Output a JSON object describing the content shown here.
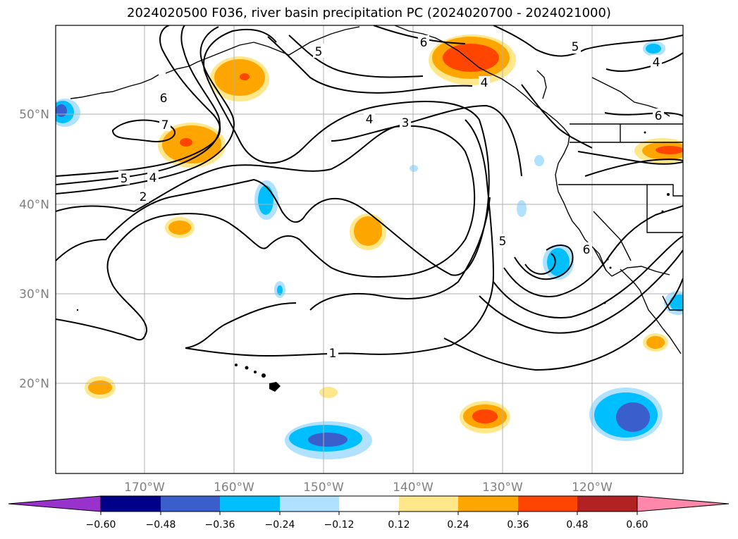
{
  "title": "2024020500 F036, river basin precipitation PC (2024020700 - 2024021000)",
  "map": {
    "lon_ticks": [
      "170°W",
      "160°W",
      "150°W",
      "140°W",
      "130°W",
      "120°W"
    ],
    "lat_ticks": [
      "50°N",
      "40°N",
      "30°N",
      "20°N"
    ],
    "contour_labels": [
      "6",
      "7",
      "5",
      "4",
      "2",
      "5",
      "4",
      "3",
      "6",
      "4",
      "5",
      "4",
      "6",
      "1",
      "6",
      "5"
    ]
  },
  "colorbar": {
    "labels": [
      "−0.60",
      "−0.48",
      "−0.36",
      "−0.24",
      "−0.12",
      "0.12",
      "0.24",
      "0.36",
      "0.48",
      "0.60"
    ],
    "colors": [
      "#9932cc",
      "#00008b",
      "#3a5fcd",
      "#00bfff",
      "#b0e2ff",
      "#ffffff",
      "#ffe78c",
      "#ffa500",
      "#ff4500",
      "#b22222",
      "#ff88aa"
    ]
  },
  "colors": {
    "grid": "#b0b0b0",
    "tick_text": "#808080"
  }
}
